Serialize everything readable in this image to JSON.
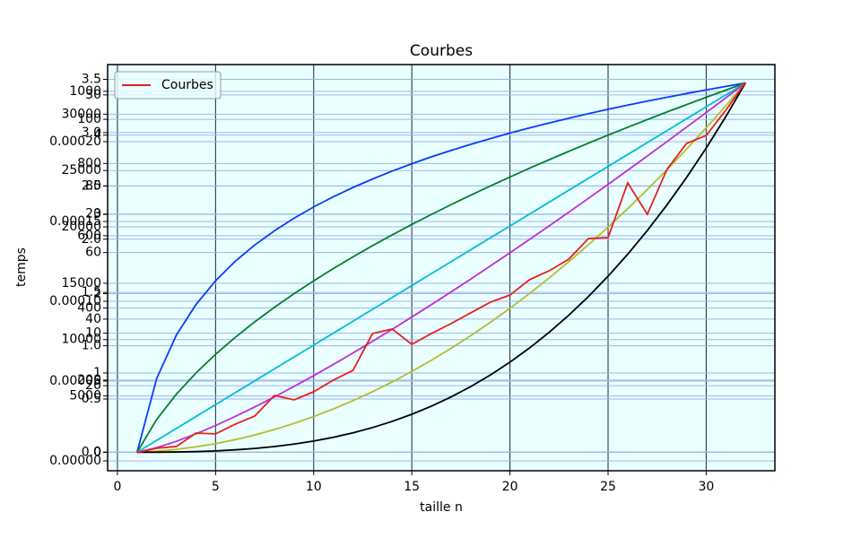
{
  "chart_data": {
    "type": "line",
    "title": "Courbes",
    "x_label": "taille n",
    "y_label": "temps",
    "xlim": [
      -0.5,
      33.5
    ],
    "xticks": [
      0,
      5,
      10,
      15,
      20,
      25,
      30
    ],
    "x": [
      1,
      2,
      3,
      4,
      5,
      6,
      7,
      8,
      9,
      10,
      11,
      12,
      13,
      14,
      15,
      16,
      17,
      18,
      19,
      20,
      21,
      22,
      23,
      24,
      25,
      26,
      27,
      28,
      29,
      30,
      31,
      32
    ],
    "grid": true,
    "legend": "upper left",
    "series": [
      {
        "color": "#0a3cff",
        "ylim": [
          -0.1733,
          3.639
        ],
        "yticks": [
          {
            "value": 0,
            "label": "0.0"
          },
          0.5,
          {
            "value": 1,
            "label": "1.0"
          },
          1.5,
          {
            "value": 2,
            "label": "2.0"
          },
          2.5,
          {
            "value": 3,
            "label": "3.0"
          },
          3.5
        ],
        "values": [
          0,
          0.693,
          1.099,
          1.386,
          1.609,
          1.792,
          1.946,
          2.079,
          2.197,
          2.303,
          2.398,
          2.485,
          2.565,
          2.639,
          2.708,
          2.773,
          2.833,
          2.89,
          2.944,
          2.996,
          3.045,
          3.091,
          3.135,
          3.178,
          3.219,
          3.258,
          3.296,
          3.332,
          3.367,
          3.401,
          3.434,
          3.466
        ]
      },
      {
        "color": "#00802b",
        "ylim": [
          -0.2329,
          4.89
        ],
        "yticks": [
          0,
          1,
          2,
          3,
          4
        ],
        "values": [
          0,
          0.414,
          0.732,
          1,
          1.236,
          1.449,
          1.646,
          1.828,
          2,
          2.162,
          2.317,
          2.464,
          2.606,
          2.742,
          2.873,
          3,
          3.123,
          3.243,
          3.359,
          3.472,
          3.583,
          3.69,
          3.796,
          3.899,
          4,
          4.099,
          4.196,
          4.292,
          4.385,
          4.477,
          4.568,
          4.657
        ]
      },
      {
        "color": "#00bcd4",
        "ylim": [
          -1.55,
          32.55
        ],
        "yticks": [
          0,
          10,
          20,
          30
        ],
        "values": [
          0,
          1,
          2,
          3,
          4,
          5,
          6,
          7,
          8,
          9,
          10,
          11,
          12,
          13,
          14,
          15,
          16,
          17,
          18,
          19,
          20,
          21,
          22,
          23,
          24,
          25,
          26,
          27,
          28,
          29,
          30,
          31
        ]
      },
      {
        "color": "#bf2fd6",
        "ylim": [
          -5.545,
          116.45
        ],
        "yticks": [
          0,
          20,
          40,
          60,
          80,
          100
        ],
        "values": [
          0,
          1.386,
          3.296,
          5.545,
          8.047,
          10.751,
          13.621,
          16.636,
          19.775,
          23.026,
          26.377,
          29.819,
          33.344,
          36.947,
          40.621,
          44.361,
          48.165,
          52.026,
          55.944,
          59.915,
          63.935,
          68.003,
          72.116,
          76.273,
          80.472,
          84.711,
          88.988,
          93.302,
          97.652,
          102.036,
          106.454,
          110.904
        ]
      },
      {
        "color": "#b5bd2c",
        "ylim": [
          -51.15,
          1074.15
        ],
        "yticks": [
          0,
          200,
          400,
          600,
          800,
          1000
        ],
        "values": [
          0,
          3,
          8,
          15,
          24,
          35,
          48,
          63,
          80,
          99,
          120,
          143,
          168,
          195,
          224,
          255,
          288,
          323,
          360,
          399,
          440,
          483,
          528,
          575,
          624,
          675,
          728,
          783,
          840,
          899,
          960,
          1023
        ]
      },
      {
        "color": "#000000",
        "ylim": [
          -1638.35,
          34405.35
        ],
        "yticks": [
          0,
          5000,
          10000,
          15000,
          20000,
          25000,
          30000
        ],
        "values": [
          0,
          7,
          26,
          63,
          124,
          215,
          342,
          511,
          728,
          999,
          1330,
          1727,
          2196,
          2743,
          3374,
          4095,
          4912,
          5831,
          6858,
          7999,
          9260,
          10647,
          12166,
          13823,
          15624,
          17575,
          19682,
          21951,
          24388,
          26999,
          29790,
          32767
        ]
      },
      {
        "name": "Courbes",
        "color": "#e8201a",
        "ylim": [
          -6.2e-06,
          0.0002483
        ],
        "yticks": [
          {
            "value": 0,
            "label": "0.00000"
          },
          {
            "value": 5e-05,
            "label": "0.00005"
          },
          {
            "value": 0.0001,
            "label": "0.00010"
          },
          {
            "value": 0.00015,
            "label": "0.00015"
          },
          {
            "value": 0.0002,
            "label": "0.00020"
          }
        ],
        "values": [
          5.1e-06,
          7.9e-06,
          9e-06,
          1.74e-05,
          1.69e-05,
          2.3e-05,
          2.81e-05,
          4.1e-05,
          3.82e-05,
          4.33e-05,
          5.06e-05,
          5.67e-05,
          7.98e-05,
          8.26e-05,
          7.3e-05,
          7.98e-05,
          8.6e-05,
          9.27e-05,
          9.94e-05,
          0.0001039,
          0.0001135,
          0.0001191,
          0.0001264,
          0.0001393,
          0.0001399,
          0.0001742,
          0.0001545,
          0.0001826,
          0.0001989,
          0.0002039,
          0.0002197,
          0.0002371
        ]
      }
    ]
  }
}
